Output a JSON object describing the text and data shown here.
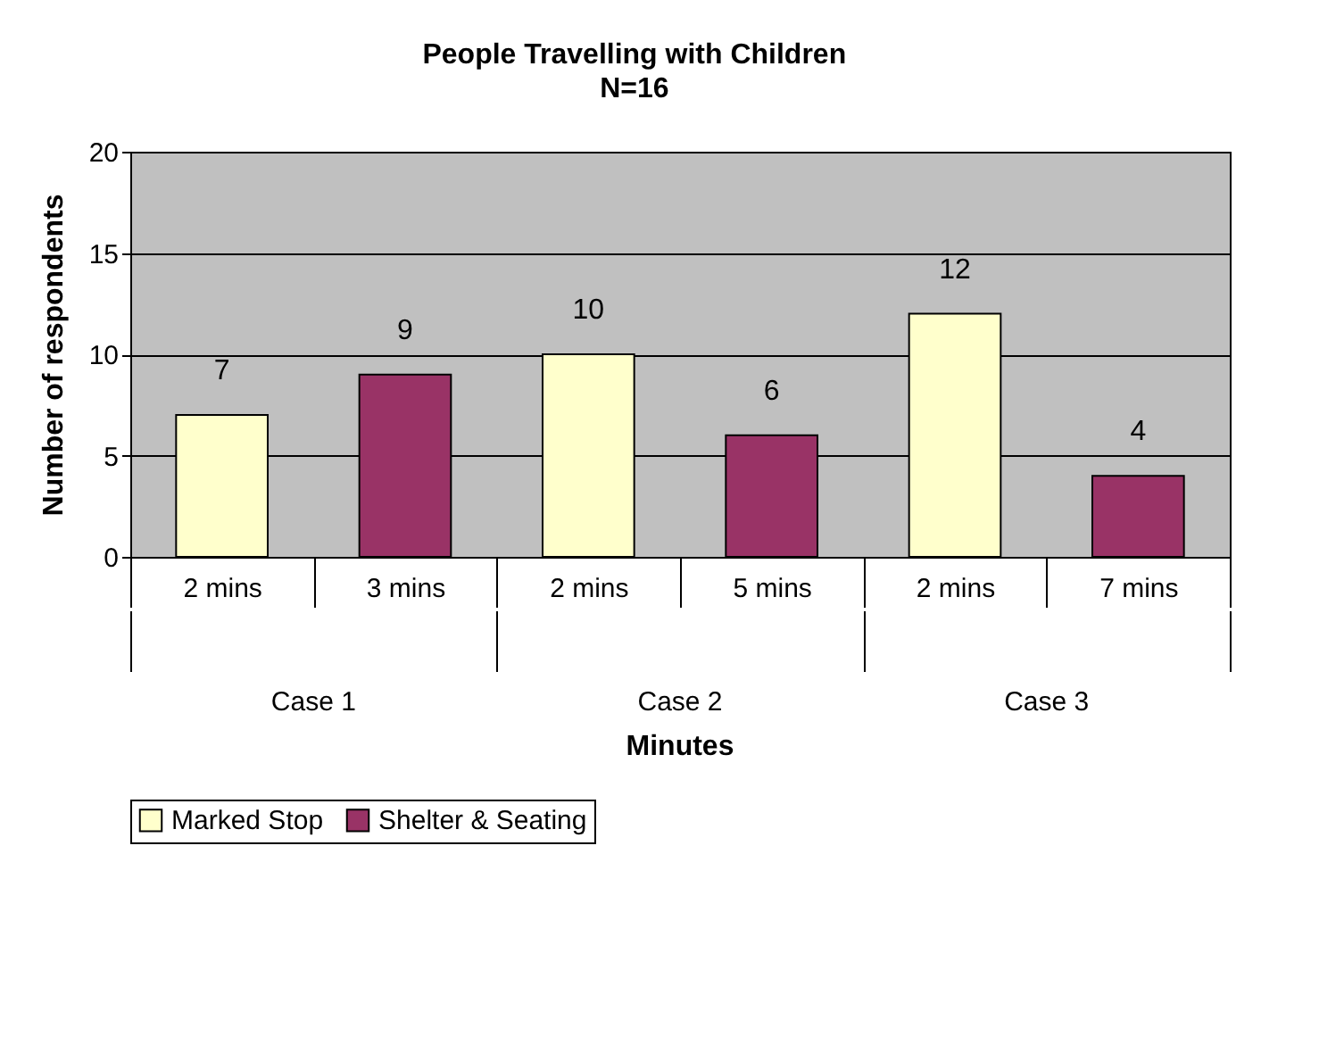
{
  "chart_data": {
    "type": "bar",
    "title": "People Travelling with Children",
    "subtitle": "N=16",
    "xlabel": "Minutes",
    "ylabel": "Number of respondents",
    "categories": [
      "2 mins",
      "3 mins",
      "2 mins",
      "5 mins",
      "2 mins",
      "7 mins"
    ],
    "series": [
      {
        "name": "Marked Stop",
        "color": "#ffffcc",
        "values": [
          7,
          null,
          10,
          null,
          12,
          null
        ]
      },
      {
        "name": "Shelter & Seating",
        "color": "#993366",
        "values": [
          null,
          9,
          null,
          6,
          null,
          4
        ]
      }
    ],
    "annotations": [
      "Case 1",
      "Case 2",
      "Case 3"
    ],
    "ylim": [
      0,
      20
    ],
    "yticks": [
      0,
      5,
      10,
      15,
      20
    ],
    "grid": "y",
    "legend": "bottom",
    "data_labels": true
  }
}
